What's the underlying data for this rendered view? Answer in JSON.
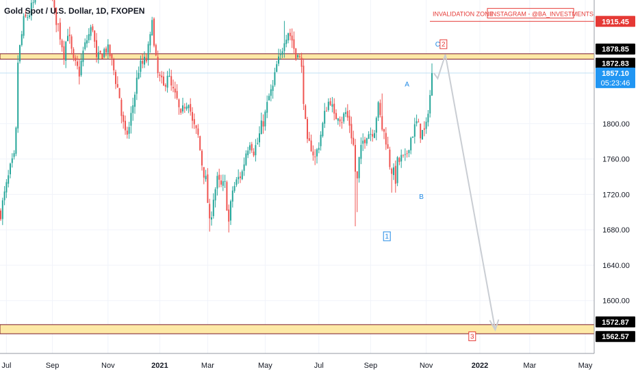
{
  "header": {
    "symbol_title": "Gold Spot / U.S. Dollar, 1D, FXOPEN"
  },
  "annotations": {
    "invalidation_zone": "INVALIDATION ZONE",
    "instagram": "INSTAGRAM - @BA_INVESTMENTS",
    "wave_labels": [
      {
        "text": "1",
        "boxed": true,
        "color": "#1e88e5",
        "t": 201.5,
        "price": 1670
      },
      {
        "text": "A",
        "boxed": false,
        "color": "#1e88e5",
        "t": 212,
        "price": 1842
      },
      {
        "text": "B",
        "boxed": false,
        "color": "#1e88e5",
        "t": 219.5,
        "price": 1715
      },
      {
        "text": "C",
        "boxed": false,
        "color": "#1e88e5",
        "t": 228,
        "price": 1887
      },
      {
        "text": "2",
        "boxed": true,
        "color": "#e53935",
        "t": 231,
        "price": 1887
      },
      {
        "text": "3",
        "boxed": true,
        "color": "#e53935",
        "t": 246,
        "price": 1557
      }
    ]
  },
  "colors": {
    "up": "#26a69a",
    "down": "#ef5350",
    "zone_fill": "#fde9a6",
    "zone_border": "#7a1a2a",
    "invalidation_line": "#e53935",
    "projection": "#c9cdd3",
    "current_price_line": "#bfe0f4",
    "current_price_tag": "#2196f3",
    "dark_tag": "#000000",
    "red_tag": "#e53935"
  },
  "chart_data": {
    "type": "candlestick",
    "title": "Gold Spot / U.S. Dollar, 1D, FXOPEN",
    "x_axis": {
      "tick_labels": [
        {
          "label": "Jul",
          "t": 3
        },
        {
          "label": "Sep",
          "t": 27
        },
        {
          "label": "Nov",
          "t": 56
        },
        {
          "label": "2021",
          "t": 83
        },
        {
          "label": "Mar",
          "t": 108
        },
        {
          "label": "May",
          "t": 138
        },
        {
          "label": "Jul",
          "t": 166
        },
        {
          "label": "Sep",
          "t": 193
        },
        {
          "label": "Nov",
          "t": 222
        },
        {
          "label": "2022",
          "t": 250
        },
        {
          "label": "Mar",
          "t": 276
        },
        {
          "label": "May",
          "t": 305
        }
      ]
    },
    "y_axis": {
      "range": [
        1555,
        1935
      ],
      "tick_labels": [
        1600,
        1640,
        1680,
        1720,
        1760,
        1800
      ]
    },
    "price_tags": [
      {
        "label": "1915.45",
        "value": 1915.45,
        "style": "red"
      },
      {
        "label": "1878.85",
        "value": 1878.85,
        "style": "dark"
      },
      {
        "label": "1872.83",
        "value": 1872.83,
        "style": "dark"
      },
      {
        "label": "1857.10",
        "sublabel": "05:23:46",
        "value": 1857.1,
        "style": "blue"
      },
      {
        "label": "1572.87",
        "value": 1572.87,
        "style": "dark"
      },
      {
        "label": "1562.57",
        "value": 1562.57,
        "style": "dark"
      }
    ],
    "zones": [
      {
        "name": "resistance",
        "top": 1878.85,
        "bottom": 1872.83
      },
      {
        "name": "target",
        "top": 1572.87,
        "bottom": 1562.57
      }
    ],
    "invalidation_level": 1915.45,
    "current_price": 1857.1,
    "projection_path": [
      {
        "t": 226,
        "price": 1857
      },
      {
        "t": 228,
        "price": 1851
      },
      {
        "t": 232,
        "price": 1878
      },
      {
        "t": 258,
        "price": 1567
      }
    ],
    "close_path": [
      [
        0,
        1700
      ],
      [
        5,
        1748
      ],
      [
        7,
        1760
      ],
      [
        8,
        1790
      ],
      [
        9,
        1870
      ],
      [
        12,
        1915
      ],
      [
        15,
        1925
      ],
      [
        20,
        1950
      ],
      [
        25,
        1960
      ],
      [
        28,
        1925
      ],
      [
        30,
        1910
      ],
      [
        33,
        1880
      ],
      [
        35,
        1905
      ],
      [
        38,
        1868
      ],
      [
        41,
        1858
      ],
      [
        43,
        1880
      ],
      [
        45,
        1895
      ],
      [
        48,
        1910
      ],
      [
        50,
        1870
      ],
      [
        53,
        1880
      ],
      [
        55,
        1885
      ],
      [
        57,
        1878
      ],
      [
        59,
        1860
      ],
      [
        62,
        1830
      ],
      [
        63,
        1810
      ],
      [
        65,
        1785
      ],
      [
        67,
        1795
      ],
      [
        70,
        1835
      ],
      [
        72,
        1862
      ],
      [
        76,
        1872
      ],
      [
        78,
        1895
      ],
      [
        79,
        1925
      ],
      [
        80,
        1885
      ],
      [
        82,
        1855
      ],
      [
        85,
        1840
      ],
      [
        87,
        1858
      ],
      [
        89,
        1840
      ],
      [
        92,
        1825
      ],
      [
        94,
        1805
      ],
      [
        96,
        1822
      ],
      [
        98,
        1828
      ],
      [
        100,
        1800
      ],
      [
        103,
        1785
      ],
      [
        105,
        1755
      ],
      [
        107,
        1735
      ],
      [
        108,
        1712
      ],
      [
        109,
        1685
      ],
      [
        111,
        1718
      ],
      [
        113,
        1735
      ],
      [
        115,
        1728
      ],
      [
        117,
        1730
      ],
      [
        119,
        1688
      ],
      [
        121,
        1725
      ],
      [
        124,
        1738
      ],
      [
        126,
        1745
      ],
      [
        128,
        1768
      ],
      [
        130,
        1782
      ],
      [
        132,
        1770
      ],
      [
        134,
        1778
      ],
      [
        136,
        1796
      ],
      [
        138,
        1810
      ],
      [
        140,
        1830
      ],
      [
        142,
        1840
      ],
      [
        144,
        1865
      ],
      [
        146,
        1875
      ],
      [
        148,
        1898
      ],
      [
        150,
        1905
      ],
      [
        152,
        1895
      ],
      [
        154,
        1875
      ],
      [
        155,
        1885
      ],
      [
        157,
        1860
      ],
      [
        158,
        1830
      ],
      [
        159,
        1798
      ],
      [
        160,
        1775
      ],
      [
        162,
        1775
      ],
      [
        164,
        1760
      ],
      [
        166,
        1778
      ],
      [
        168,
        1798
      ],
      [
        170,
        1820
      ],
      [
        172,
        1828
      ],
      [
        174,
        1805
      ],
      [
        176,
        1812
      ],
      [
        178,
        1805
      ],
      [
        180,
        1812
      ],
      [
        182,
        1800
      ],
      [
        184,
        1775
      ],
      [
        185,
        1746
      ],
      [
        186,
        1735
      ],
      [
        187,
        1758
      ],
      [
        189,
        1780
      ],
      [
        191,
        1790
      ],
      [
        193,
        1790
      ],
      [
        195,
        1795
      ],
      [
        196,
        1810
      ],
      [
        197,
        1818
      ],
      [
        199,
        1795
      ],
      [
        201,
        1783
      ],
      [
        203,
        1755
      ],
      [
        204,
        1748
      ],
      [
        206,
        1738
      ],
      [
        207,
        1755
      ],
      [
        209,
        1760
      ],
      [
        211,
        1758
      ],
      [
        213,
        1778
      ],
      [
        215,
        1790
      ],
      [
        217,
        1800
      ],
      [
        219,
        1790
      ],
      [
        221,
        1790
      ],
      [
        222,
        1795
      ],
      [
        223,
        1818
      ],
      [
        224,
        1832
      ],
      [
        225,
        1857
      ]
    ],
    "extremes": [
      {
        "t": 185,
        "low": 1684
      },
      {
        "t": 186,
        "low": 1700
      },
      {
        "t": 204,
        "low": 1722
      },
      {
        "t": 206,
        "low": 1722
      },
      {
        "t": 109,
        "low": 1678
      },
      {
        "t": 119,
        "low": 1677
      },
      {
        "t": 148,
        "high": 1916
      },
      {
        "t": 199,
        "high": 1834
      },
      {
        "t": 225,
        "high": 1868
      }
    ]
  }
}
